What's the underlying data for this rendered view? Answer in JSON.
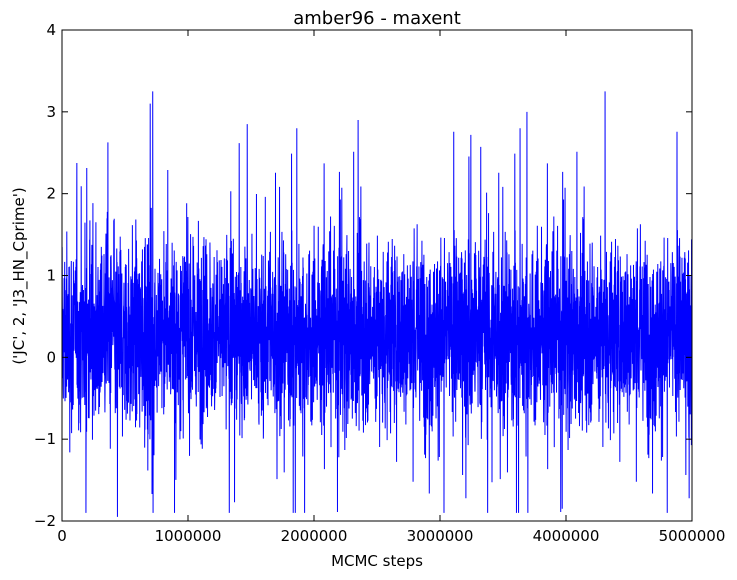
{
  "chart_data": {
    "type": "line",
    "title": "amber96 - maxent",
    "xlabel": "MCMC steps",
    "ylabel": "('JC', 2, 'J3_HN_Cprime')",
    "xlim": [
      0,
      5000000
    ],
    "ylim": [
      -2,
      4
    ],
    "xticks": [
      0,
      1000000,
      2000000,
      3000000,
      4000000,
      5000000
    ],
    "xtick_labels": [
      "0",
      "1000000",
      "2000000",
      "3000000",
      "4000000",
      "5000000"
    ],
    "yticks": [
      -2,
      -1,
      0,
      1,
      2,
      3,
      4
    ],
    "ytick_labels": [
      "−2",
      "−1",
      "0",
      "1",
      "2",
      "3",
      "4"
    ],
    "grid": false,
    "series": [
      {
        "color": "#0000ff",
        "approx_center": 0.3,
        "approx_band": [
          -1.0,
          1.6
        ],
        "notable_points": [
          {
            "x": 190000,
            "y": -1.9
          },
          {
            "x": 440000,
            "y": -1.95
          },
          {
            "x": 700000,
            "y": 3.1
          },
          {
            "x": 720000,
            "y": 3.25
          },
          {
            "x": 1470000,
            "y": 2.85
          },
          {
            "x": 2350000,
            "y": 2.9
          },
          {
            "x": 3690000,
            "y": 3.0
          },
          {
            "x": 3970000,
            "y": -1.85
          },
          {
            "x": 4310000,
            "y": 3.25
          }
        ]
      }
    ]
  }
}
